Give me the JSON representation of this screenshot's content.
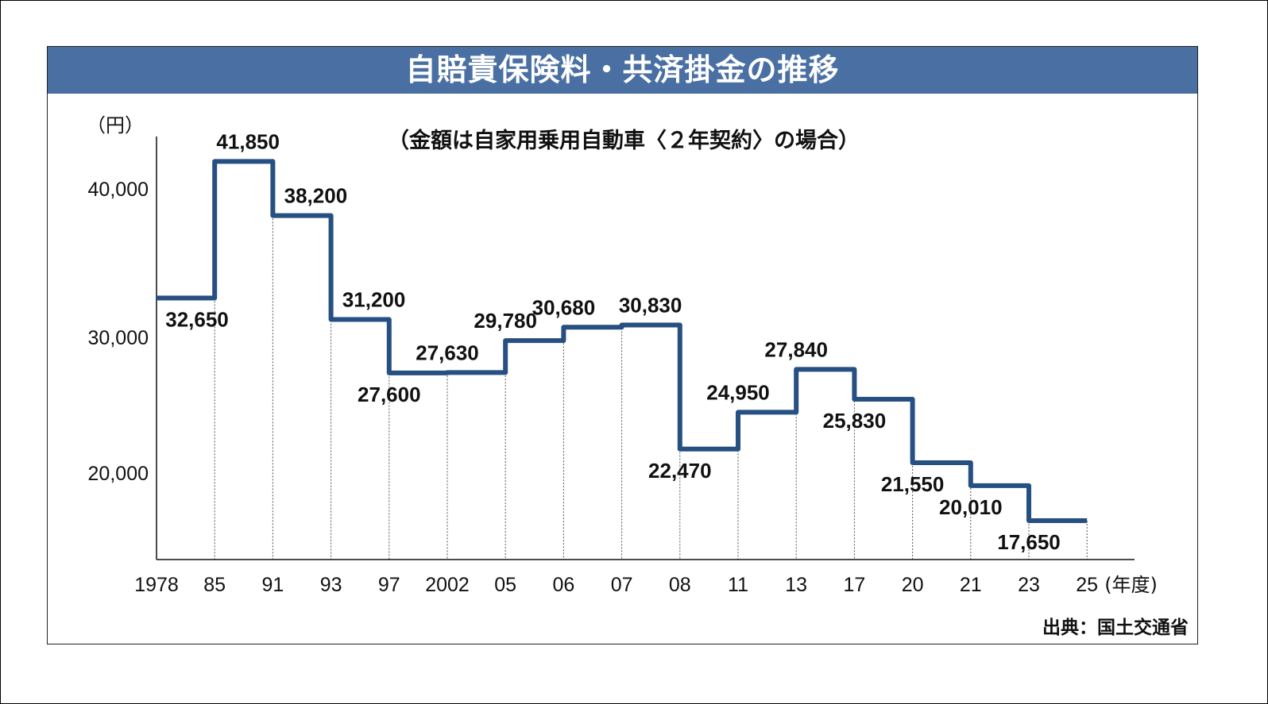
{
  "chart_data": {
    "type": "line",
    "style": "step",
    "title": "自賠責保険料・共済掛金の推移",
    "subtitle": "（金額は自家用乗用自動車〈２年契約〉の場合）",
    "ylabel": "（円）",
    "xlabel": "(年度)",
    "source": "出典：国土交通省",
    "x_ticks": [
      "1978",
      "85",
      "91",
      "93",
      "97",
      "2002",
      "05",
      "06",
      "07",
      "08",
      "11",
      "13",
      "17",
      "20",
      "21",
      "23",
      "25"
    ],
    "y_ticks": [
      {
        "value": 20000,
        "label": "20,000"
      },
      {
        "value": 30000,
        "label": "30,000"
      },
      {
        "value": 40000,
        "label": "40,000"
      }
    ],
    "ylim": [
      15300,
      43500
    ],
    "series": [
      {
        "name": "自賠責保険料・共済掛金",
        "color": "#264f82",
        "values": [
          32650,
          41850,
          38200,
          31200,
          27600,
          27630,
          29780,
          30680,
          30830,
          22470,
          24950,
          27840,
          25830,
          21550,
          20010,
          17650
        ],
        "labels": [
          "32,650",
          "41,850",
          "38,200",
          "31,200",
          "27,600",
          "27,630",
          "29,780",
          "30,680",
          "30,830",
          "22,470",
          "24,950",
          "27,840",
          "25,830",
          "21,550",
          "20,010",
          "17,650"
        ]
      }
    ]
  }
}
